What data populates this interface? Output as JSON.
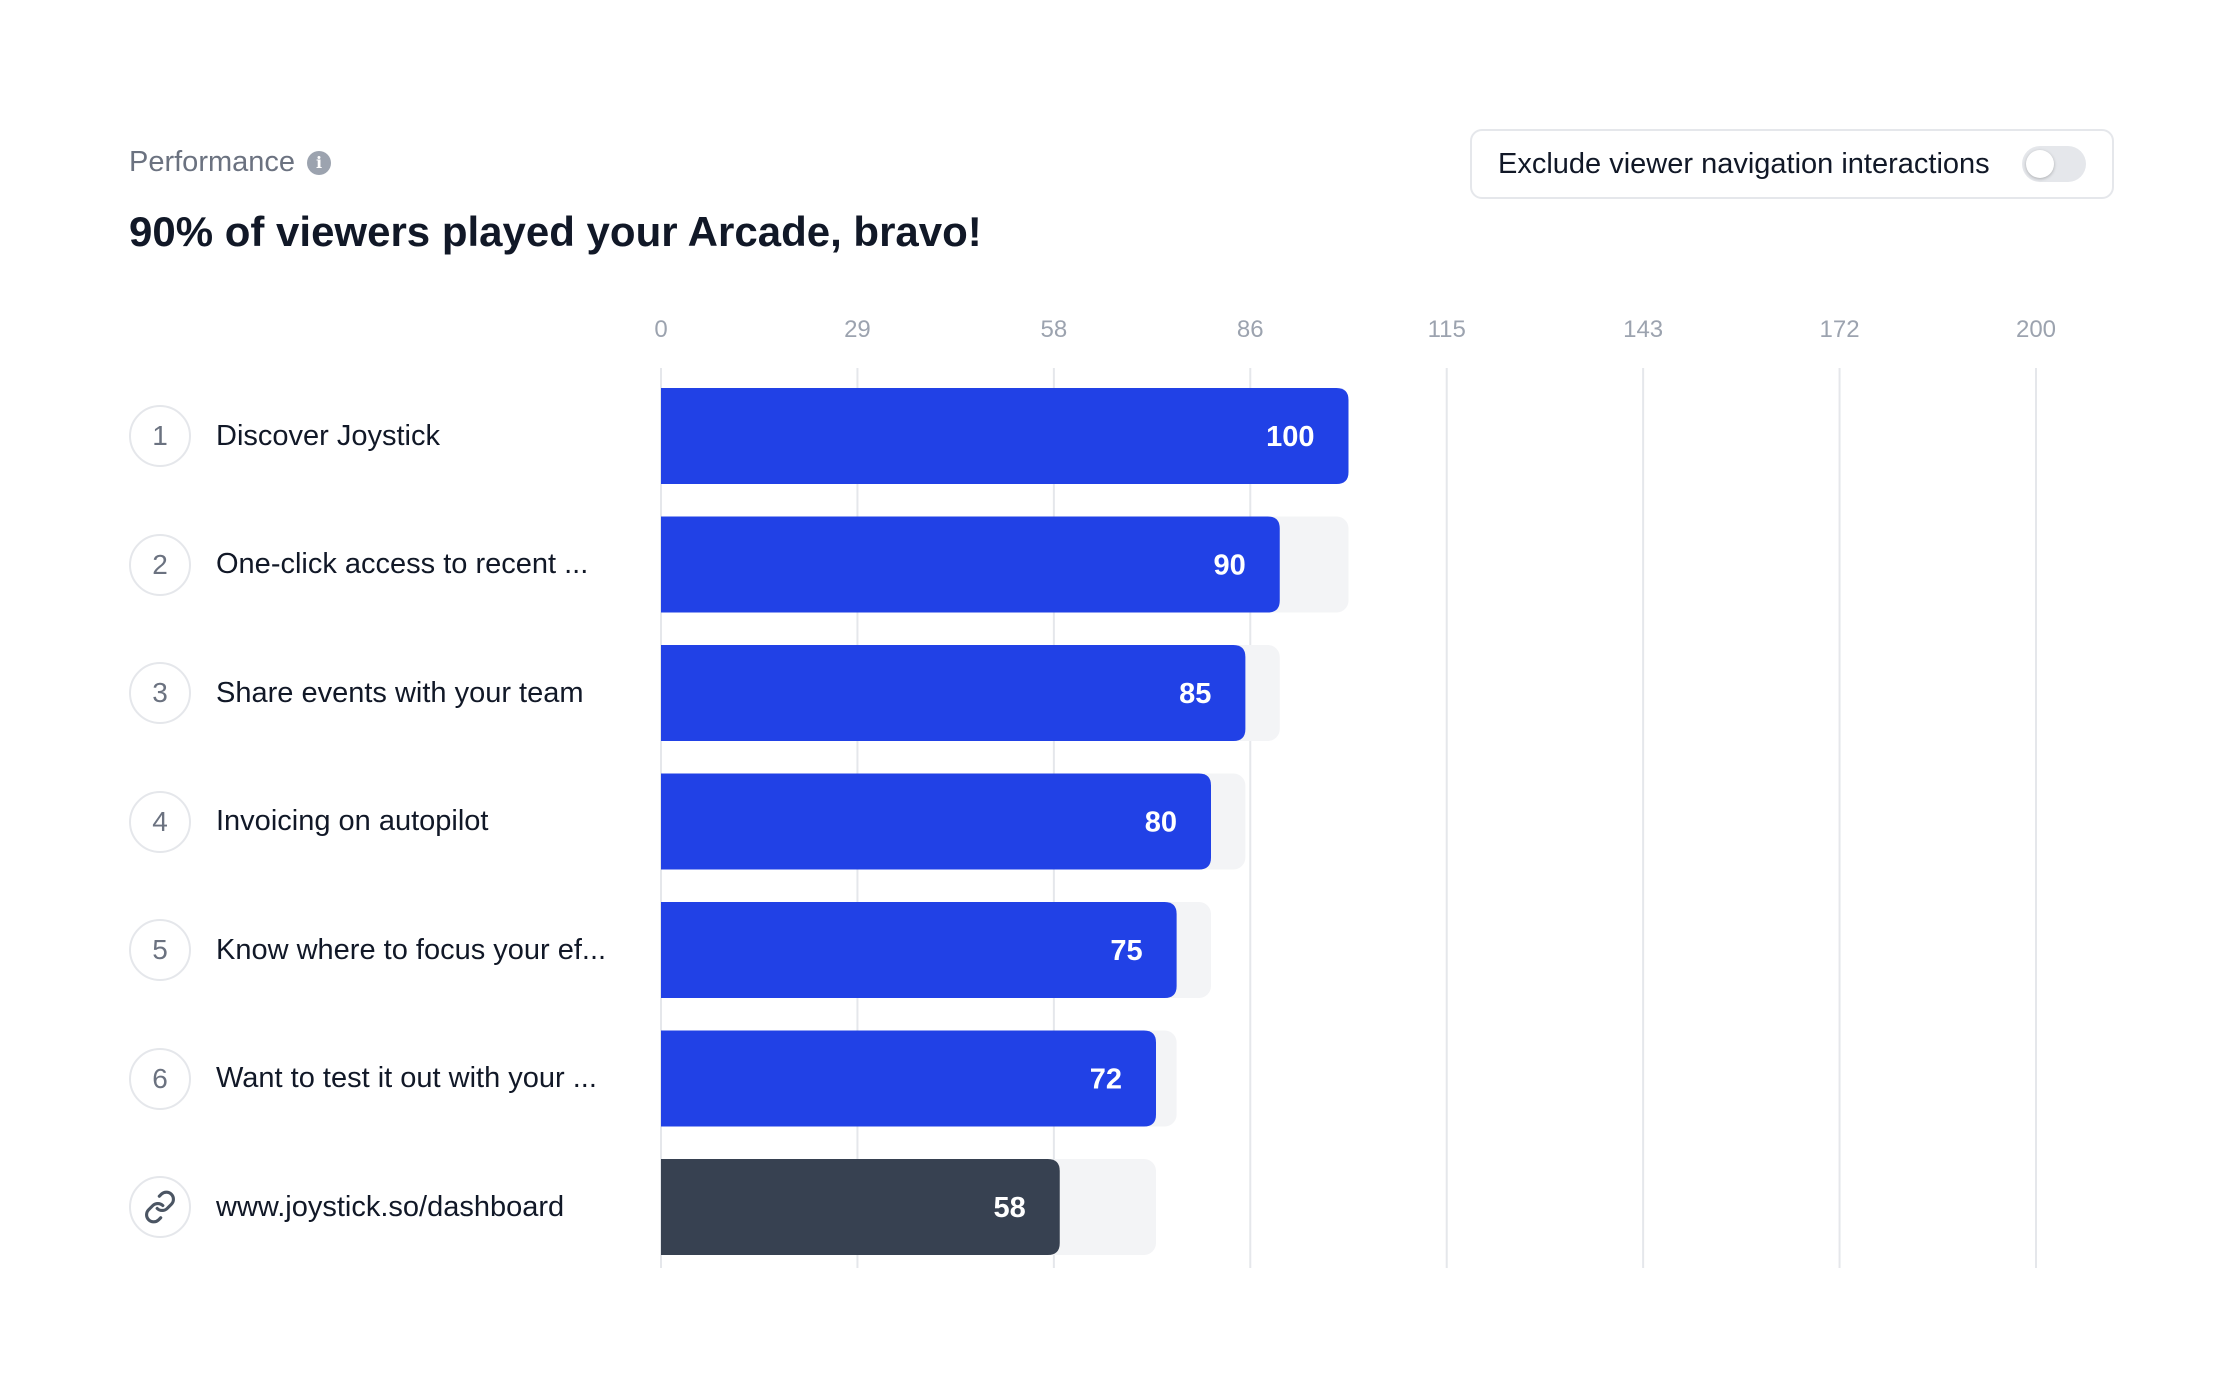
{
  "header": {
    "section_label": "Performance",
    "headline": "90% of viewers played your Arcade, bravo!",
    "toggle_label": "Exclude viewer navigation interactions",
    "toggle_on": false
  },
  "colors": {
    "bar": "#2141e6",
    "bar_link": "#374151",
    "ghost": "#f3f4f6",
    "grid": "#e5e7eb",
    "tick": "#9ca3af"
  },
  "icons": {
    "link_step": "link-icon",
    "info": "info-icon"
  },
  "chart_data": {
    "type": "bar",
    "orientation": "horizontal",
    "xlim": [
      0,
      200
    ],
    "x_ticks": [
      "0",
      "29",
      "58",
      "86",
      "115",
      "143",
      "172",
      "200"
    ],
    "grid": true,
    "categories": [
      "Discover Joystick",
      "One-click access to recent ...",
      "Share events with your team",
      "Invoicing on autopilot",
      "Know where to focus your ef...",
      "Want to test it out with your ...",
      "www.joystick.so/dashboard"
    ],
    "step_markers": [
      "1",
      "2",
      "3",
      "4",
      "5",
      "6",
      "link"
    ],
    "values": [
      100,
      90,
      85,
      80,
      75,
      72,
      58
    ],
    "previous_values": [
      null,
      100,
      90,
      85,
      80,
      75,
      72
    ],
    "data_labels": [
      "100",
      "90",
      "85",
      "80",
      "75",
      "72",
      "58"
    ]
  }
}
